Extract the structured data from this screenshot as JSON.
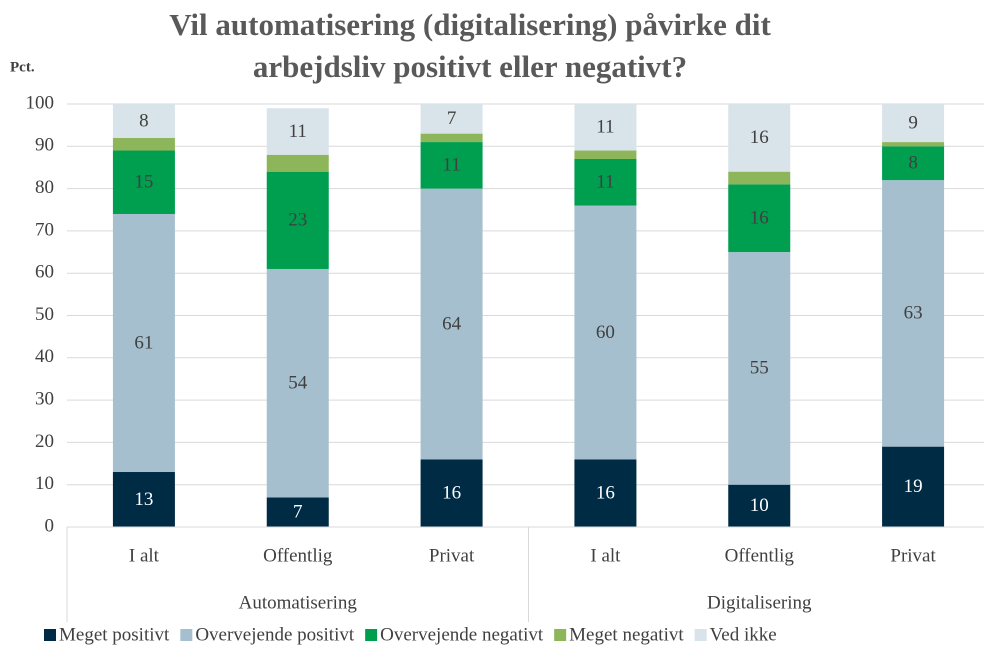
{
  "chart_data": {
    "type": "stacked_bar",
    "title": [
      "Vil automatisering (digitalisering) påvirke dit",
      "arbejdsliv positivt eller negativt?"
    ],
    "y_label": "Pct.",
    "groups": [
      {
        "name": "Automatisering",
        "categories": [
          "I alt",
          "Offentlig",
          "Privat"
        ]
      },
      {
        "name": "Digitalisering",
        "categories": [
          "I alt",
          "Offentlig",
          "Privat"
        ]
      }
    ],
    "series": [
      {
        "name": "Meget positivt",
        "color": "#002b45",
        "label_color": "#ffffff",
        "values": [
          13,
          7,
          16,
          16,
          10,
          19
        ]
      },
      {
        "name": "Overvejende positivt",
        "color": "#a6bfcf",
        "label_color": "#404040",
        "values": [
          61,
          54,
          64,
          60,
          55,
          63
        ]
      },
      {
        "name": "Overvejende negativt",
        "color": "#009e4f",
        "label_color": "#404040",
        "values": [
          15,
          23,
          11,
          11,
          16,
          8
        ]
      },
      {
        "name": "Meget negativt",
        "color": "#8db55a",
        "values": [
          3,
          4,
          2,
          2,
          3,
          1
        ]
      },
      {
        "name": "Ved ikke",
        "color": "#d9e3ea",
        "label_color": "#404040",
        "values": [
          8,
          11,
          7,
          11,
          16,
          9
        ]
      }
    ],
    "ylim": [
      0,
      100
    ],
    "yticks": [
      0,
      10,
      20,
      30,
      40,
      50,
      60,
      70,
      80,
      90,
      100
    ],
    "grid": true
  }
}
